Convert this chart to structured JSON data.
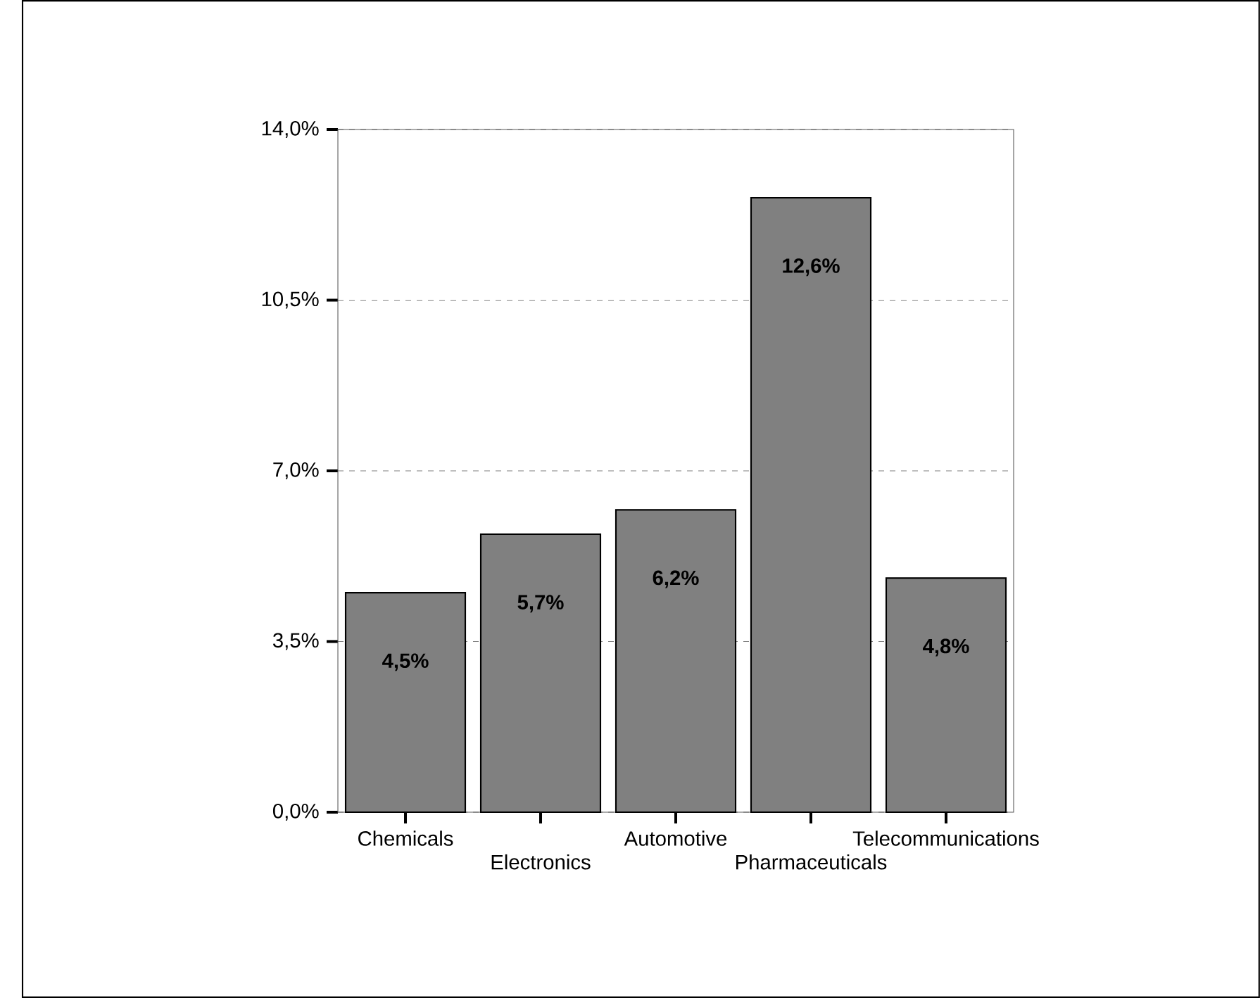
{
  "chart_data": {
    "type": "bar",
    "categories": [
      "Chemicals",
      "Electronics",
      "Automotive",
      "Pharmaceuticals",
      "Telecommunications"
    ],
    "values": [
      4.5,
      5.7,
      6.2,
      12.6,
      4.8
    ],
    "value_labels": [
      "4,5%",
      "5,7%",
      "6,2%",
      "12,6%",
      "4,8%"
    ],
    "color": "#808080",
    "ylim": [
      0,
      14
    ],
    "yticks": [
      {
        "value": 0,
        "label": "0,0%"
      },
      {
        "value": 3.5,
        "label": "3,5%"
      },
      {
        "value": 7,
        "label": "7,0%"
      },
      {
        "value": 10.5,
        "label": "10,5%"
      },
      {
        "value": 14,
        "label": "14,0%"
      }
    ],
    "grid": "y"
  }
}
